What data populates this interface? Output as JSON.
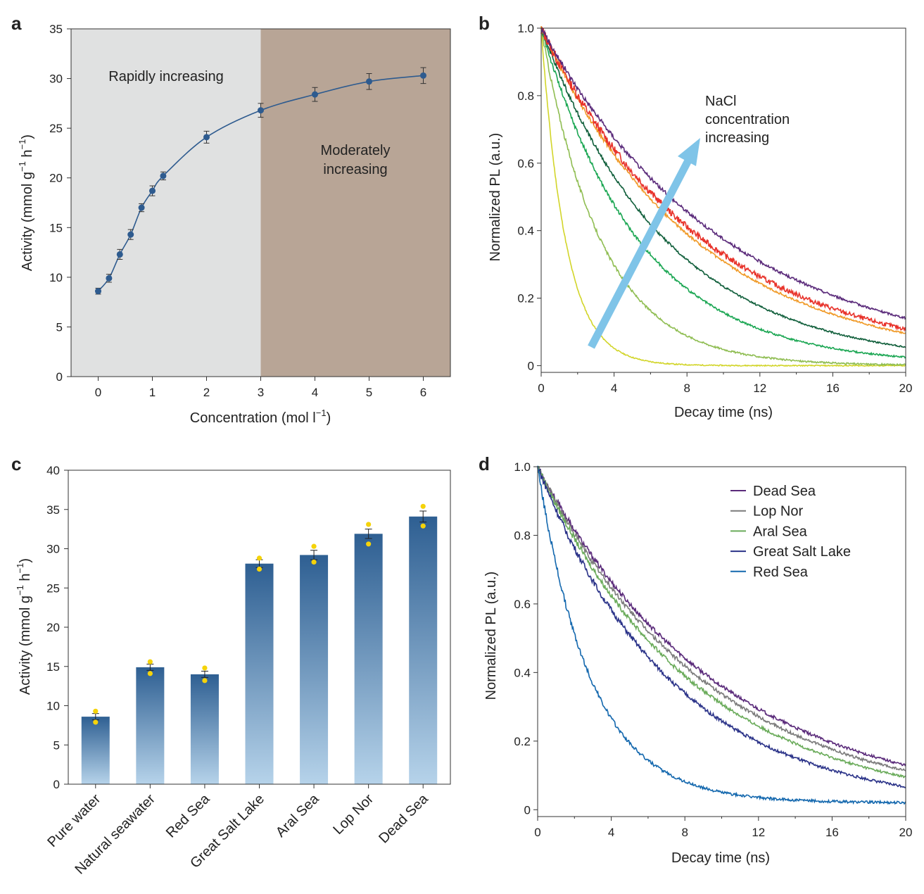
{
  "chart_data": [
    {
      "panel": "a",
      "type": "line",
      "x": [
        0,
        0.2,
        0.4,
        0.6,
        0.8,
        1.0,
        1.2,
        2,
        3,
        4,
        5,
        6
      ],
      "y": [
        8.6,
        9.9,
        12.3,
        14.3,
        17.0,
        18.7,
        20.2,
        24.1,
        26.8,
        28.4,
        29.7,
        30.3
      ],
      "err": [
        0.3,
        0.4,
        0.5,
        0.5,
        0.4,
        0.5,
        0.4,
        0.6,
        0.7,
        0.7,
        0.8,
        0.8
      ],
      "xlabel": "Concentration (mol l",
      "xlabel_sup": "−1",
      "xlabel_end": ")",
      "ylabel": "Activity (mmol g",
      "ylabel_sup1": "−1",
      "ylabel_mid": " h",
      "ylabel_sup2": "−1",
      "ylabel_end": ")",
      "xlim": [
        -0.5,
        6.5
      ],
      "ylim": [
        0,
        35
      ],
      "xticks": [
        0,
        1,
        2,
        3,
        4,
        5,
        6
      ],
      "yticks": [
        0,
        5,
        10,
        15,
        20,
        25,
        30,
        35
      ],
      "regions": [
        {
          "from": -0.5,
          "to": 3,
          "label_lines": [
            "Rapidly increasing"
          ],
          "color": "#e0e1e1"
        },
        {
          "from": 3,
          "to": 6.5,
          "label_lines": [
            "Moderately",
            "increasing"
          ],
          "color": "#b8a596"
        }
      ],
      "series_color": "#2e5b8f"
    },
    {
      "panel": "b",
      "type": "line",
      "xlabel": "Decay time (ns)",
      "ylabel": "Normalized PL (a.u.)",
      "xlim": [
        0,
        20
      ],
      "ylim": [
        -0.02,
        1.0
      ],
      "xticks": [
        0,
        4,
        8,
        12,
        16,
        20
      ],
      "yticks": [
        0,
        0.2,
        0.4,
        0.6,
        0.8,
        1.0
      ],
      "ytick_labels": [
        "0",
        "0.2",
        "0.4",
        "0.6",
        "0.8",
        "1.0"
      ],
      "annotation_lines": [
        "NaCl",
        "concentration",
        "increasing"
      ],
      "arrow_color": "#7fc4e8",
      "series": [
        {
          "name": "c1",
          "tau": 1.35,
          "color": "#d2d52a",
          "noise": 0.004
        },
        {
          "name": "c2",
          "tau": 3.3,
          "color": "#8fbd52",
          "noise": 0.006
        },
        {
          "name": "c3",
          "tau": 5.4,
          "color": "#1aa652",
          "noise": 0.006
        },
        {
          "name": "c4",
          "tau": 6.9,
          "color": "#0f5e3a",
          "noise": 0.005
        },
        {
          "name": "c5",
          "tau": 8.5,
          "color": "#f09a28",
          "noise": 0.005
        },
        {
          "name": "c6",
          "tau": 9.0,
          "color": "#e8322a",
          "noise": 0.012
        },
        {
          "name": "c7",
          "tau": 10.2,
          "color": "#5a2a7a",
          "noise": 0.006
        }
      ]
    },
    {
      "panel": "c",
      "type": "bar",
      "categories": [
        "Pure water",
        "Natural seawater",
        "Red Sea",
        "Great Salt Lake",
        "Aral Sea",
        "Lop Nor",
        "Dead Sea"
      ],
      "values": [
        8.6,
        14.9,
        14.0,
        28.1,
        29.2,
        31.9,
        34.1
      ],
      "err": [
        0.4,
        0.4,
        0.4,
        0.5,
        0.6,
        0.6,
        0.7
      ],
      "points": [
        [
          9.3,
          7.9
        ],
        [
          15.6,
          14.1
        ],
        [
          14.8,
          13.2
        ],
        [
          28.8,
          27.4
        ],
        [
          30.3,
          28.3
        ],
        [
          33.1,
          30.6
        ],
        [
          35.4,
          32.9
        ]
      ],
      "ylabel": "Activity (mmol g",
      "ylabel_sup1": "−1",
      "ylabel_mid": " h",
      "ylabel_sup2": "−1",
      "ylabel_end": ")",
      "ylim": [
        0,
        40
      ],
      "yticks": [
        0,
        5,
        10,
        15,
        20,
        25,
        30,
        35,
        40
      ],
      "bar_top_color": "#2e5f92",
      "bar_bottom_color": "#b6d3ea",
      "point_color": "#f5d30a"
    },
    {
      "panel": "d",
      "type": "line",
      "xlabel": "Decay time (ns)",
      "ylabel": "Normalized PL (a.u.)",
      "xlim": [
        0,
        20
      ],
      "ylim": [
        -0.02,
        1.0
      ],
      "xticks": [
        0,
        4,
        8,
        12,
        16,
        20
      ],
      "yticks": [
        0,
        0.2,
        0.4,
        0.6,
        0.8,
        1.0
      ],
      "ytick_labels": [
        "0",
        "0.2",
        "0.4",
        "0.6",
        "0.8",
        "1.0"
      ],
      "legend_position": "top-right",
      "series": [
        {
          "name": "Dead Sea",
          "tau": 9.8,
          "color": "#5a2a7a",
          "noise": 0.007,
          "floor": 0
        },
        {
          "name": "Lop Nor",
          "tau": 9.2,
          "color": "#7a7a7a",
          "noise": 0.007,
          "floor": 0
        },
        {
          "name": "Aral Sea",
          "tau": 8.5,
          "color": "#6aab5a",
          "noise": 0.007,
          "floor": 0
        },
        {
          "name": "Great Salt Lake",
          "tau": 7.4,
          "color": "#2a3288",
          "noise": 0.008,
          "floor": 0
        },
        {
          "name": "Red Sea",
          "tau": 2.9,
          "color": "#1468ae",
          "noise": 0.009,
          "floor": 0.02
        }
      ]
    }
  ],
  "panel_labels": {
    "a": "a",
    "b": "b",
    "c": "c",
    "d": "d"
  }
}
